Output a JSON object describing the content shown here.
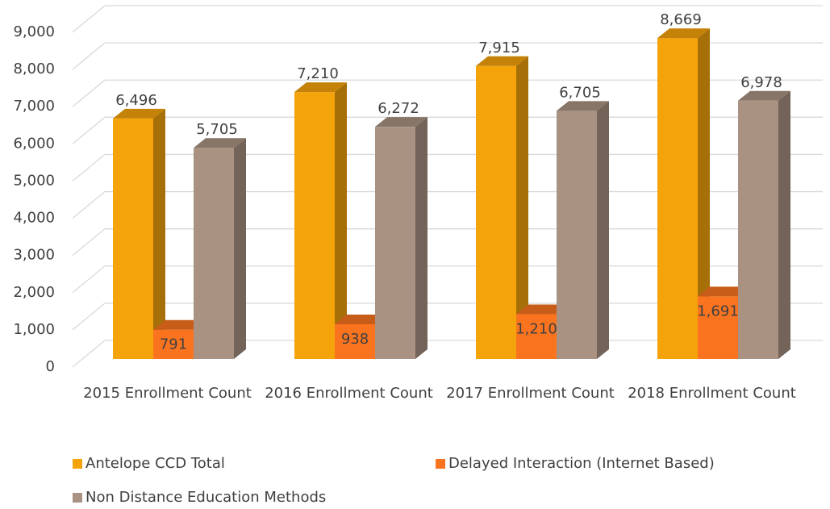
{
  "chart_data": {
    "type": "bar3d",
    "categories": [
      "2015 Enrollment Count",
      "2016 Enrollment Count",
      "2017 Enrollment Count",
      "2018 Enrollment Count"
    ],
    "series": [
      {
        "name": "Antelope CCD Total",
        "color": "#f5a30a",
        "values": [
          6496,
          7210,
          7915,
          8669
        ],
        "value_labels": [
          "6,496",
          "7,210",
          "7,915",
          "8,669"
        ]
      },
      {
        "name": "Delayed Interaction (Internet Based)",
        "color": "#fa7420",
        "values": [
          791,
          938,
          1210,
          1691
        ],
        "value_labels": [
          "791",
          "938",
          "1,210",
          "1,691"
        ]
      },
      {
        "name": "Non Distance Education Methods",
        "color": "#a99282",
        "values": [
          5705,
          6272,
          6705,
          6978
        ],
        "value_labels": [
          "5,705",
          "6,272",
          "6,705",
          "6,978"
        ]
      }
    ],
    "ylim": [
      0,
      9000
    ],
    "yticks": [
      0,
      {
        "value": 1000,
        "label": "1,000"
      },
      {
        "value": 2000,
        "label": "2,000"
      },
      {
        "value": 3000,
        "label": "3,000"
      },
      {
        "value": 4000,
        "label": "4,000"
      },
      {
        "value": 5000,
        "label": "5,000"
      },
      {
        "value": 6000,
        "label": "6,000"
      },
      {
        "value": 7000,
        "label": "7,000"
      },
      {
        "value": 8000,
        "label": "8,000"
      },
      {
        "value": 9000,
        "label": "9,000"
      }
    ],
    "grid": true,
    "legend": "bottom"
  }
}
